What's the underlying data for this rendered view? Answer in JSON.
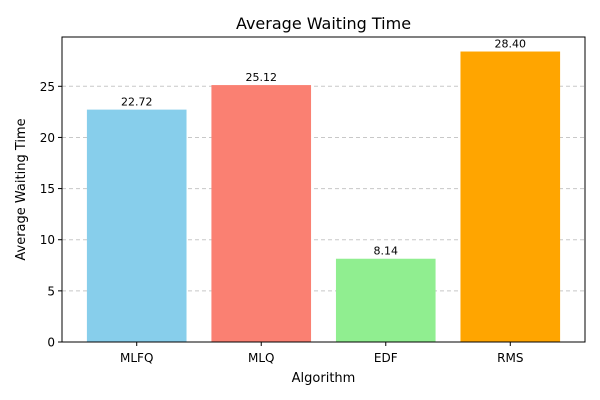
{
  "chart_data": {
    "type": "bar",
    "title": "Average Waiting Time",
    "xlabel": "Algorithm",
    "ylabel": "Average Waiting Time",
    "categories": [
      "MLFQ",
      "MLQ",
      "EDF",
      "RMS"
    ],
    "values": [
      22.72,
      25.12,
      8.14,
      28.4
    ],
    "data_labels": [
      "22.72",
      "25.12",
      "8.14",
      "28.40"
    ],
    "colors": [
      "#87ceeb",
      "#fa8072",
      "#90ee90",
      "#ffa500"
    ],
    "ylim": [
      0,
      29.82
    ],
    "yticks": [
      0,
      5,
      10,
      15,
      20,
      25
    ],
    "grid": "y-dashed",
    "legend": "none"
  }
}
